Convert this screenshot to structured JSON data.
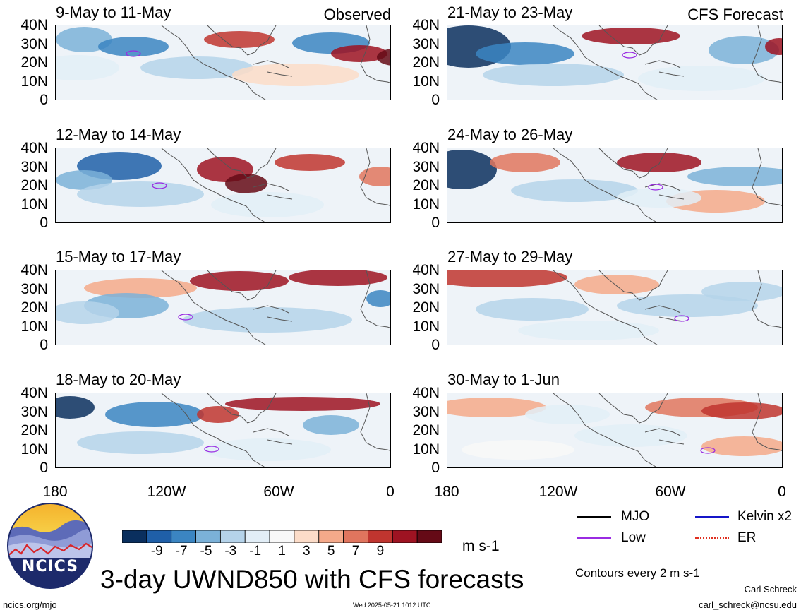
{
  "figure": {
    "title": "3-day UWND850 with CFS forecasts",
    "colorbar_unit": "m s-1",
    "colorbar_ticks": [
      "-9",
      "-7",
      "-5",
      "-3",
      "-1",
      "1",
      "3",
      "5",
      "7",
      "9"
    ],
    "colorbar_colors": [
      "#0a2f5e",
      "#1f5fa8",
      "#3b85c2",
      "#7bb1d8",
      "#b5d3ea",
      "#e2eef7",
      "#f8f8f8",
      "#fcdcc8",
      "#f5a98a",
      "#e0755e",
      "#c0352f",
      "#9e1322",
      "#650a16"
    ],
    "contour_note": "Contours every 2 m s-1",
    "author": "Carl Schreck",
    "email": "carl_schreck@ncsu.edu",
    "url": "ncics.org/mjo",
    "timestamp": "Wed 2025-05-21 1012 UTC",
    "logo_text": "NCICS"
  },
  "legend": [
    {
      "label": "MJO",
      "color": "#000000"
    },
    {
      "label": "Kelvin x2",
      "color": "#1515c8"
    },
    {
      "label": "Low",
      "color": "#9a2be2"
    },
    {
      "label": "ER",
      "color": "#e03020"
    }
  ],
  "columns": {
    "left_label": "Observed",
    "right_label": "CFS Forecast"
  },
  "axes": {
    "y_ticks": [
      "40N",
      "30N",
      "20N",
      "10N",
      "0"
    ],
    "x_ticks": [
      "180",
      "120W",
      "60W",
      "0"
    ]
  },
  "chart_data": {
    "type": "heatmap",
    "variable": "UWND850",
    "units": "m s-1",
    "levels": [
      -9,
      -7,
      -5,
      -3,
      -1,
      1,
      3,
      5,
      7,
      9
    ],
    "x_range": [
      "180",
      "0"
    ],
    "y_range": [
      "0",
      "40N"
    ],
    "panels": [
      {
        "period": "9-May to 11-May",
        "source": "Observed"
      },
      {
        "period": "12-May to 14-May",
        "source": "Observed"
      },
      {
        "period": "15-May to 17-May",
        "source": "Observed"
      },
      {
        "period": "18-May to 20-May",
        "source": "Observed"
      },
      {
        "period": "21-May to 23-May",
        "source": "CFS Forecast"
      },
      {
        "period": "24-May to 26-May",
        "source": "CFS Forecast"
      },
      {
        "period": "27-May to 29-May",
        "source": "CFS Forecast"
      },
      {
        "period": "30-May to 1-Jun",
        "source": "CFS Forecast"
      }
    ]
  }
}
